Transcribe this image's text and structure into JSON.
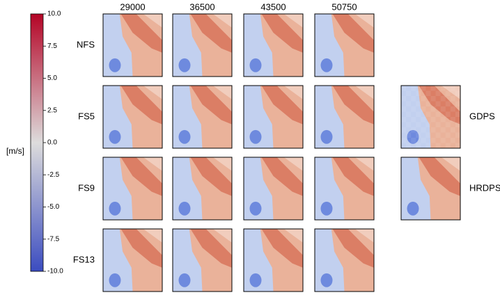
{
  "chart_data": {
    "type": "heatmap-grid",
    "colorbar_label": "[m/s]",
    "colormap": [
      "#3b4cc0",
      "#dddcdc",
      "#b40426"
    ],
    "ylim": [
      -10,
      10
    ],
    "yticks": [
      {
        "value": 10,
        "label": "10.0"
      },
      7.5,
      {
        "value": 5,
        "label": "5.0"
      },
      2.5,
      {
        "value": 0,
        "label": "0.0"
      },
      -2.5,
      {
        "value": -5,
        "label": "-5.0"
      },
      -7.5,
      {
        "value": -10,
        "label": "-10.0"
      }
    ],
    "columns": [
      "29000",
      "36500",
      "43500",
      "50750"
    ],
    "rows": [
      "NFS",
      "FS5",
      "FS9",
      "FS13"
    ],
    "reference_rows": [
      "GDPS",
      "HRDPS"
    ]
  }
}
